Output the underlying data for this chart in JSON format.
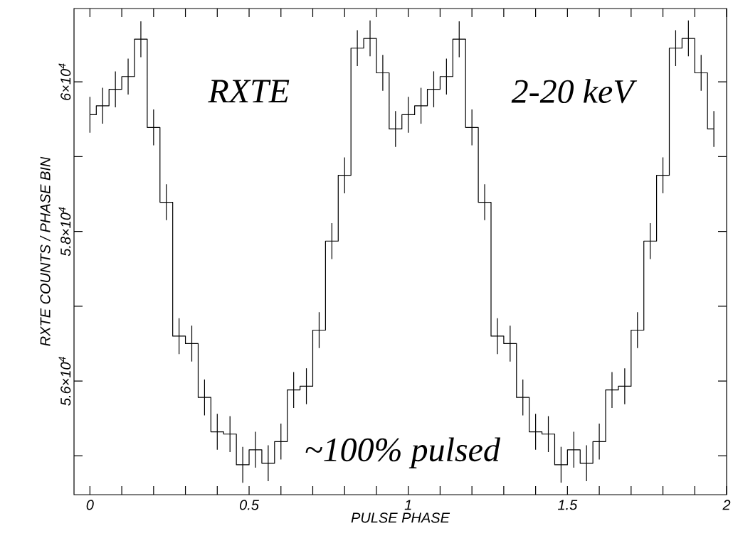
{
  "chart_data": {
    "type": "step",
    "xlabel": "PULSE PHASE",
    "ylabel": "RXTE COUNTS / PHASE BIN",
    "x": [
      0,
      0.04,
      0.08,
      0.12,
      0.16,
      0.2,
      0.24,
      0.28,
      0.32,
      0.36,
      0.4,
      0.44,
      0.48,
      0.52,
      0.56,
      0.6,
      0.64,
      0.68,
      0.72,
      0.76,
      0.8,
      0.84,
      0.88,
      0.92,
      0.96,
      1,
      1.04,
      1.08,
      1.12,
      1.16,
      1.2,
      1.24,
      1.28,
      1.32,
      1.36,
      1.4,
      1.44,
      1.48,
      1.52,
      1.56,
      1.6,
      1.64,
      1.68,
      1.72,
      1.76,
      1.8,
      1.84,
      1.88,
      1.92,
      1.96
    ],
    "series": [
      {
        "color": "#000000",
        "values": [
          59560,
          59680,
          59900,
          60070,
          60570,
          59390,
          58390,
          56600,
          56500,
          55780,
          55320,
          55290,
          54880,
          55080,
          54900,
          55190,
          55880,
          55930,
          56680,
          57870,
          58750,
          60450,
          60580,
          60120,
          59370,
          59560,
          59680,
          59900,
          60070,
          60570,
          59390,
          58390,
          56600,
          56500,
          55780,
          55320,
          55290,
          54880,
          55080,
          54900,
          55190,
          55880,
          55930,
          56680,
          57870,
          58750,
          60450,
          60580,
          60120,
          59370
        ],
        "errors": [
          240,
          240,
          240,
          240,
          240,
          240,
          240,
          240,
          240,
          240,
          240,
          240,
          240,
          240,
          240,
          240,
          240,
          240,
          240,
          240,
          240,
          240,
          240,
          240,
          240,
          240,
          240,
          240,
          240,
          240,
          240,
          240,
          240,
          240,
          240,
          240,
          240,
          240,
          240,
          240,
          240,
          240,
          240,
          240,
          240,
          240,
          240,
          240,
          240,
          240
        ]
      }
    ],
    "xlim": [
      -0.05,
      2.0
    ],
    "ylim": [
      54480,
      60980
    ],
    "xticks": [
      0,
      {
        "value": 0.1,
        "label": null
      },
      {
        "value": 0.2,
        "label": null
      },
      {
        "value": 0.3,
        "label": null
      },
      {
        "value": 0.4,
        "label": null
      },
      0.5,
      {
        "value": 0.6,
        "label": null
      },
      {
        "value": 0.7,
        "label": null
      },
      {
        "value": 0.8,
        "label": null
      },
      {
        "value": 0.9,
        "label": null
      },
      1,
      {
        "value": 1.1,
        "label": null
      },
      {
        "value": 1.2,
        "label": null
      },
      {
        "value": 1.3,
        "label": null
      },
      {
        "value": 1.4,
        "label": null
      },
      1.5,
      {
        "value": 1.6,
        "label": null
      },
      {
        "value": 1.7,
        "label": null
      },
      {
        "value": 1.8,
        "label": null
      },
      {
        "value": 1.9,
        "label": null
      },
      2
    ],
    "yticks": [
      {
        "value": 55000,
        "label": null
      },
      {
        "value": 56000,
        "label": "5.6×10$^{4}$"
      },
      {
        "value": 57000,
        "label": null
      },
      {
        "value": 58000,
        "label": "5.8×10$^{4}$"
      },
      {
        "value": 59000,
        "label": null
      },
      {
        "value": 60000,
        "label": "6×10$^{4}$"
      }
    ],
    "annotations": [
      "RXTE",
      "2-20 keV",
      "~100% pulsed"
    ]
  }
}
